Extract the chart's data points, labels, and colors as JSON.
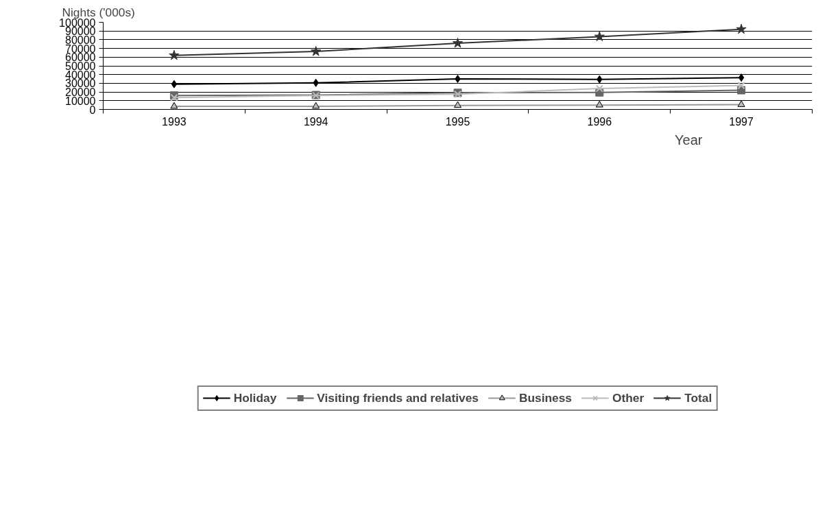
{
  "chart_data": {
    "type": "line",
    "ylabel": "Nights ('000s)",
    "xlabel": "Year",
    "categories": [
      "1993",
      "1994",
      "1995",
      "1996",
      "1997"
    ],
    "ylim": [
      0,
      100000
    ],
    "yticks": [
      0,
      10000,
      20000,
      30000,
      40000,
      50000,
      60000,
      70000,
      80000,
      90000,
      100000
    ],
    "grid": "y",
    "legend": "bottom",
    "line_style": "solid",
    "series": [
      {
        "name": "Holiday",
        "color": "#000000",
        "marker": "diamond",
        "values": [
          29000,
          30500,
          35000,
          34500,
          36500
        ]
      },
      {
        "name": "Visiting friends and relatives",
        "color": "#666666",
        "marker": "square",
        "values": [
          16000,
          16500,
          19000,
          19500,
          22000
        ]
      },
      {
        "name": "Business",
        "color": "#999999",
        "marker": "triangle",
        "values": [
          3500,
          3500,
          4500,
          5000,
          5500
        ]
      },
      {
        "name": "Other",
        "color": "#bbbbbb",
        "marker": "cross",
        "values": [
          13500,
          16000,
          17500,
          24000,
          27500
        ]
      },
      {
        "name": "Total",
        "color": "#333333",
        "marker": "star",
        "values": [
          62000,
          66500,
          76000,
          83500,
          92000
        ]
      }
    ]
  }
}
